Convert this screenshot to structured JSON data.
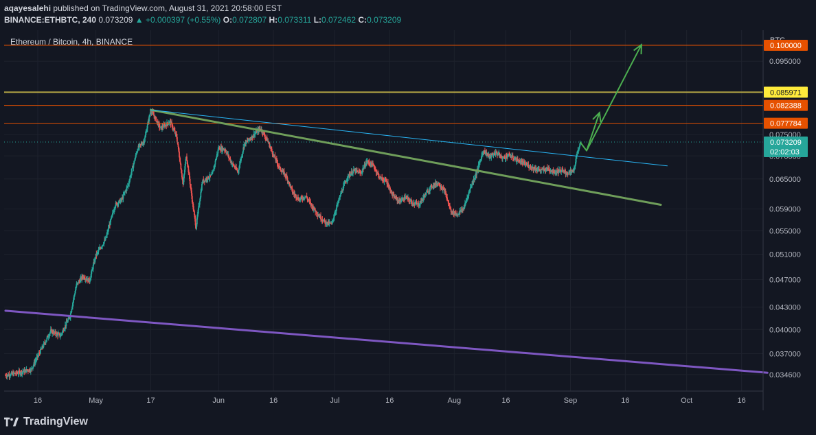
{
  "header": {
    "publisher": "aqayesalehi",
    "published_text": "published on TradingView.com, August 31, 2021 20:58:00 EST",
    "symbol": "BINANCE:ETHBTC, 240",
    "last": "0.073209",
    "change_arrow": "▲",
    "change": "+0.000397 (+0.55%)",
    "o_label": "O:",
    "o": "0.072807",
    "h_label": "H:",
    "h": "0.073311",
    "l_label": "L:",
    "l": "0.072462",
    "c_label": "C:",
    "c": "0.073209"
  },
  "legend_title": "Ethereum / Bitcoin, 4h, BINANCE",
  "footer": {
    "brand": "TradingView",
    "logo_icon": "tradingview-logo-icon"
  },
  "chart_data": {
    "type": "candlestick",
    "currency": "BTC",
    "x_ticks": [
      "16",
      "May",
      "17",
      "Jun",
      "16",
      "Jul",
      "16",
      "Aug",
      "16",
      "Sep",
      "16",
      "Oct",
      "16"
    ],
    "y_ticks": [
      "0.095000",
      "0.075000",
      "0.070000",
      "0.065000",
      "0.059000",
      "0.055000",
      "0.051000",
      "0.047000",
      "0.043000",
      "0.040000",
      "0.037000",
      "0.034600"
    ],
    "y_range": [
      0.0328,
      0.105
    ],
    "price_path": [
      [
        0,
        0.0345
      ],
      [
        4,
        0.0348
      ],
      [
        8,
        0.0352
      ],
      [
        12,
        0.0382
      ],
      [
        14,
        0.0398
      ],
      [
        17,
        0.0392
      ],
      [
        20,
        0.0418
      ],
      [
        22,
        0.0462
      ],
      [
        24,
        0.0475
      ],
      [
        26,
        0.0468
      ],
      [
        28,
        0.0508
      ],
      [
        31,
        0.0535
      ],
      [
        34,
        0.0598
      ],
      [
        36,
        0.0608
      ],
      [
        38,
        0.0638
      ],
      [
        41,
        0.0718
      ],
      [
        43,
        0.0735
      ],
      [
        45,
        0.0812
      ],
      [
        48,
        0.0765
      ],
      [
        51,
        0.0782
      ],
      [
        53,
        0.0745
      ],
      [
        55,
        0.0638
      ],
      [
        56,
        0.0702
      ],
      [
        58,
        0.0598
      ],
      [
        59,
        0.0556
      ],
      [
        61,
        0.0645
      ],
      [
        64,
        0.0658
      ],
      [
        66,
        0.0718
      ],
      [
        68,
        0.0715
      ],
      [
        70,
        0.0685
      ],
      [
        72,
        0.0665
      ],
      [
        74,
        0.0728
      ],
      [
        76,
        0.0742
      ],
      [
        78,
        0.0758
      ],
      [
        79,
        0.0765
      ],
      [
        81,
        0.0738
      ],
      [
        83,
        0.0702
      ],
      [
        85,
        0.0672
      ],
      [
        87,
        0.0655
      ],
      [
        89,
        0.0622
      ],
      [
        91,
        0.0608
      ],
      [
        93,
        0.0615
      ],
      [
        95,
        0.0595
      ],
      [
        97,
        0.0578
      ],
      [
        99,
        0.0565
      ],
      [
        101,
        0.0562
      ],
      [
        102,
        0.0582
      ],
      [
        104,
        0.0622
      ],
      [
        106,
        0.0655
      ],
      [
        108,
        0.0668
      ],
      [
        110,
        0.0662
      ],
      [
        112,
        0.0688
      ],
      [
        114,
        0.0678
      ],
      [
        116,
        0.0652
      ],
      [
        118,
        0.0645
      ],
      [
        120,
        0.0615
      ],
      [
        122,
        0.0605
      ],
      [
        124,
        0.0612
      ],
      [
        126,
        0.0602
      ],
      [
        128,
        0.0598
      ],
      [
        130,
        0.0618
      ],
      [
        132,
        0.0635
      ],
      [
        134,
        0.0642
      ],
      [
        136,
        0.0625
      ],
      [
        138,
        0.0585
      ],
      [
        140,
        0.058
      ],
      [
        142,
        0.0592
      ],
      [
        144,
        0.0632
      ],
      [
        146,
        0.0665
      ],
      [
        148,
        0.0712
      ],
      [
        150,
        0.0698
      ],
      [
        152,
        0.0708
      ],
      [
        154,
        0.0695
      ],
      [
        156,
        0.0702
      ],
      [
        158,
        0.0692
      ],
      [
        160,
        0.0685
      ],
      [
        162,
        0.0678
      ],
      [
        164,
        0.0672
      ],
      [
        166,
        0.0668
      ],
      [
        168,
        0.0672
      ],
      [
        170,
        0.0665
      ],
      [
        172,
        0.0668
      ],
      [
        174,
        0.0662
      ],
      [
        176,
        0.0668
      ],
      [
        177,
        0.0702
      ],
      [
        178,
        0.0732
      ]
    ],
    "horizontal_levels": [
      {
        "value": 0.1,
        "label": "0.100000",
        "color": "#e65100",
        "line_color": "#e65100"
      },
      {
        "value": 0.085971,
        "label": "0.085971",
        "color": "#ffeb3b",
        "line_color": "#b7a845"
      },
      {
        "value": 0.082388,
        "label": "0.082388",
        "color": "#e65100",
        "line_color": "#e65100"
      },
      {
        "value": 0.077784,
        "label": "0.077784",
        "color": "#e65100",
        "line_color": "#e65100"
      }
    ],
    "current_price": {
      "label": "0.073209",
      "countdown": "02:02:03",
      "color": "#26a69a"
    },
    "trendlines": [
      {
        "from": [
          45,
          0.0812
        ],
        "to": [
          203,
          0.0598
        ],
        "color": "#6f9e5a"
      },
      {
        "from": [
          45,
          0.0812
        ],
        "to": [
          205,
          0.0678
        ],
        "color": "#29b6f6"
      },
      {
        "from": [
          0,
          0.0425
        ],
        "to": [
          236,
          0.0348
        ],
        "color": "#7e57c2"
      }
    ],
    "arrows": [
      {
        "path": [
          [
            178,
            0.0732
          ],
          [
            180,
            0.0712
          ],
          [
            184,
            0.0805
          ]
        ],
        "color": "#4caf50"
      },
      {
        "path": [
          [
            180,
            0.0712
          ],
          [
            197,
            0.1002
          ]
        ],
        "color": "#4caf50"
      }
    ],
    "colors": {
      "up": "#26a69a",
      "down": "#ef5350"
    }
  }
}
